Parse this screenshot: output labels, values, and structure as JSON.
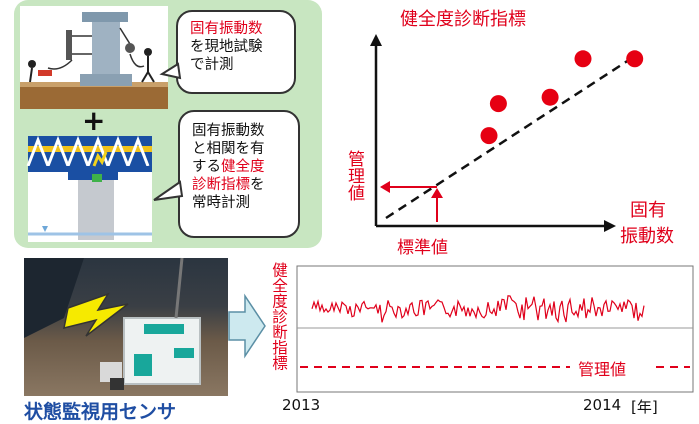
{
  "panel": {
    "bubble1": {
      "highlight": "固有振動数",
      "line2": "を現地試験",
      "line3": "で計測"
    },
    "plus": "+",
    "bubble2": {
      "line1": "固有振動数",
      "line2": "と相関を有",
      "line3_pre": "する",
      "line3_hl": "健全度",
      "line4_hl": "診断指標",
      "line4_post": "を",
      "line5": "常時計測"
    }
  },
  "scatter": {
    "ylabel": "健全度診断指標",
    "xlabel_line1": "固有",
    "xlabel_line2": "振動数",
    "threshold_label": "管理値",
    "reference_label": "標準値"
  },
  "sensor": {
    "caption": "状態監視用センサ"
  },
  "timeseries": {
    "ylabel": "健全度診断指標",
    "threshold_label": "管理値",
    "x_start": "2013",
    "x_end": "2014",
    "x_unit": "[年]"
  },
  "chart_data": {
    "type": "scatter",
    "points": [
      [
        1,
        2.2
      ],
      [
        1.2,
        3.2
      ],
      [
        2.3,
        3.4
      ],
      [
        3.0,
        4.6
      ],
      [
        4.1,
        4.6
      ]
    ],
    "trend": "dashed-linear",
    "colors": {
      "points": "#e60012",
      "trend": "#111111",
      "accent": "#e0001b",
      "caption": "#1f4ea3"
    }
  }
}
